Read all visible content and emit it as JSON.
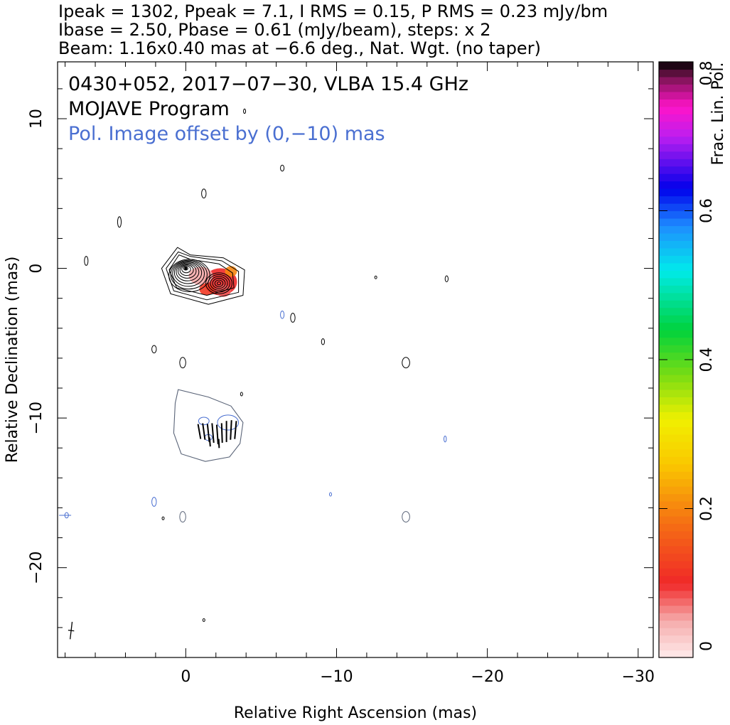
{
  "header": {
    "line1": "Ipeak = 1302, Ppeak = 7.1, I RMS = 0.15, P RMS = 0.23 mJy/bm",
    "line2": "Ibase = 2.50, Pbase = 0.61 (mJy/beam), steps: x 2",
    "line3": "Beam: 1.16x0.40 mas at −6.6 deg., Nat. Wgt. (no taper)"
  },
  "chart_data": {
    "type": "contour",
    "annotations": {
      "source_line": "0430+052, 2017−07−30, VLBA 15.4 GHz",
      "program_line": "MOJAVE Program",
      "offset_line": "Pol. Image offset by (0,−10) mas"
    },
    "xlabel": "Relative Right Ascension (mas)",
    "ylabel": "Relative Declination (mas)",
    "xlim": [
      8.5,
      -31
    ],
    "ylim": [
      -26,
      13.8
    ],
    "x_ticks": [
      0,
      -10,
      -20,
      -30
    ],
    "x_tick_labels": [
      "0",
      "−10",
      "−20",
      "−30"
    ],
    "y_ticks": [
      10,
      0,
      -10,
      -20
    ],
    "y_tick_labels": [
      "10",
      "0",
      "−10",
      "−20"
    ],
    "colorbar": {
      "label": "Frac. Lin. Pol.",
      "range": [
        0,
        0.8
      ],
      "ticks": [
        0,
        0.2,
        0.4,
        0.6,
        0.8
      ],
      "tick_labels": [
        "0",
        "0.2",
        "0.4",
        "0.6",
        "0.8"
      ]
    },
    "colors": {
      "annotation_blue": "#4a6fd1",
      "contour_black": "#000000",
      "pol_contour_gray": "#5a6478",
      "pol_blue": "#4a6fd1"
    },
    "core": {
      "x": 0,
      "y": 0,
      "levels": 9
    },
    "jet_knot": {
      "x": -2.2,
      "y": -1.0,
      "levels": 6
    },
    "pol_color_blobs": [
      {
        "x": -2.3,
        "y": -0.9,
        "rx": 1.1,
        "ry": 0.9,
        "frac": 0.1
      },
      {
        "x": -1.0,
        "y": -0.5,
        "rx": 0.8,
        "ry": 0.6,
        "frac": 0.05
      },
      {
        "x": -3.0,
        "y": -0.2,
        "rx": 0.4,
        "ry": 0.35,
        "frac": 0.2
      },
      {
        "x": -1.4,
        "y": -1.4,
        "rx": 0.5,
        "ry": 0.4,
        "frac": 0.12
      },
      {
        "x": -2.5,
        "y": -1.5,
        "rx": 0.5,
        "ry": 0.4,
        "frac": 0.08
      }
    ],
    "pol_image": {
      "offset": [
        0,
        -10
      ],
      "evpa_vectors": [
        {
          "x": -0.9,
          "y": -10.9,
          "len": 1.0,
          "angle": 10
        },
        {
          "x": -1.2,
          "y": -10.9,
          "len": 1.1,
          "angle": 8
        },
        {
          "x": -1.5,
          "y": -11.0,
          "len": 1.2,
          "angle": 6
        },
        {
          "x": -1.8,
          "y": -11.0,
          "len": 1.3,
          "angle": 5
        },
        {
          "x": -2.1,
          "y": -11.1,
          "len": 1.3,
          "angle": 4
        },
        {
          "x": -2.4,
          "y": -11.0,
          "len": 1.3,
          "angle": 2
        },
        {
          "x": -2.7,
          "y": -10.9,
          "len": 1.4,
          "angle": 0
        },
        {
          "x": -3.0,
          "y": -10.8,
          "len": 1.3,
          "angle": -3
        },
        {
          "x": -3.3,
          "y": -10.8,
          "len": 1.2,
          "angle": -5
        },
        {
          "x": -1.6,
          "y": -11.6,
          "len": 0.6,
          "angle": 5
        },
        {
          "x": -2.2,
          "y": -11.7,
          "len": 0.6,
          "angle": 3
        }
      ]
    },
    "noise_blobs_black": [
      {
        "x": 6.6,
        "y": 0.5,
        "rx": 0.12,
        "ry": 0.3
      },
      {
        "x": 4.4,
        "y": 3.1,
        "rx": 0.12,
        "ry": 0.35
      },
      {
        "x": -1.2,
        "y": 5.0,
        "rx": 0.15,
        "ry": 0.3
      },
      {
        "x": -6.4,
        "y": 6.7,
        "rx": 0.12,
        "ry": 0.2
      },
      {
        "x": -12.6,
        "y": -0.6,
        "rx": 0.05,
        "ry": 0.08
      },
      {
        "x": -17.3,
        "y": -0.7,
        "rx": 0.1,
        "ry": 0.2
      },
      {
        "x": -7.1,
        "y": -3.3,
        "rx": 0.15,
        "ry": 0.3
      },
      {
        "x": -9.1,
        "y": -4.9,
        "rx": 0.1,
        "ry": 0.2
      },
      {
        "x": 2.1,
        "y": -5.4,
        "rx": 0.15,
        "ry": 0.25
      },
      {
        "x": 0.2,
        "y": -6.3,
        "rx": 0.2,
        "ry": 0.35
      },
      {
        "x": -14.6,
        "y": -6.3,
        "rx": 0.25,
        "ry": 0.35
      },
      {
        "x": -3.7,
        "y": -8.4,
        "rx": 0.06,
        "ry": 0.12
      },
      {
        "x": 1.5,
        "y": -16.7,
        "rx": 0.05,
        "ry": 0.1
      },
      {
        "x": -1.2,
        "y": -23.5,
        "rx": 0.03,
        "ry": 0.08
      },
      {
        "x": -3.9,
        "y": 10.5,
        "rx": 0.05,
        "ry": 0.15
      }
    ],
    "noise_blobs_blue": [
      {
        "x": -6.4,
        "y": -3.1,
        "rx": 0.12,
        "ry": 0.25
      },
      {
        "x": -9.6,
        "y": -15.1,
        "rx": 0.05,
        "ry": 0.12
      },
      {
        "x": -17.2,
        "y": -11.4,
        "rx": 0.08,
        "ry": 0.2
      },
      {
        "x": 2.1,
        "y": -15.6,
        "rx": 0.15,
        "ry": 0.3
      },
      {
        "x": 7.9,
        "y": -16.5,
        "rx": 0.12,
        "ry": 0.18
      }
    ],
    "noise_blobs_gray": [
      {
        "x": 0.2,
        "y": -16.6,
        "rx": 0.2,
        "ry": 0.35
      },
      {
        "x": -14.6,
        "y": -16.6,
        "rx": 0.25,
        "ry": 0.35
      }
    ],
    "beam": {
      "x": 7.6,
      "y": -24.2,
      "major": 1.16,
      "minor": 0.4,
      "pa": -6.6
    }
  }
}
